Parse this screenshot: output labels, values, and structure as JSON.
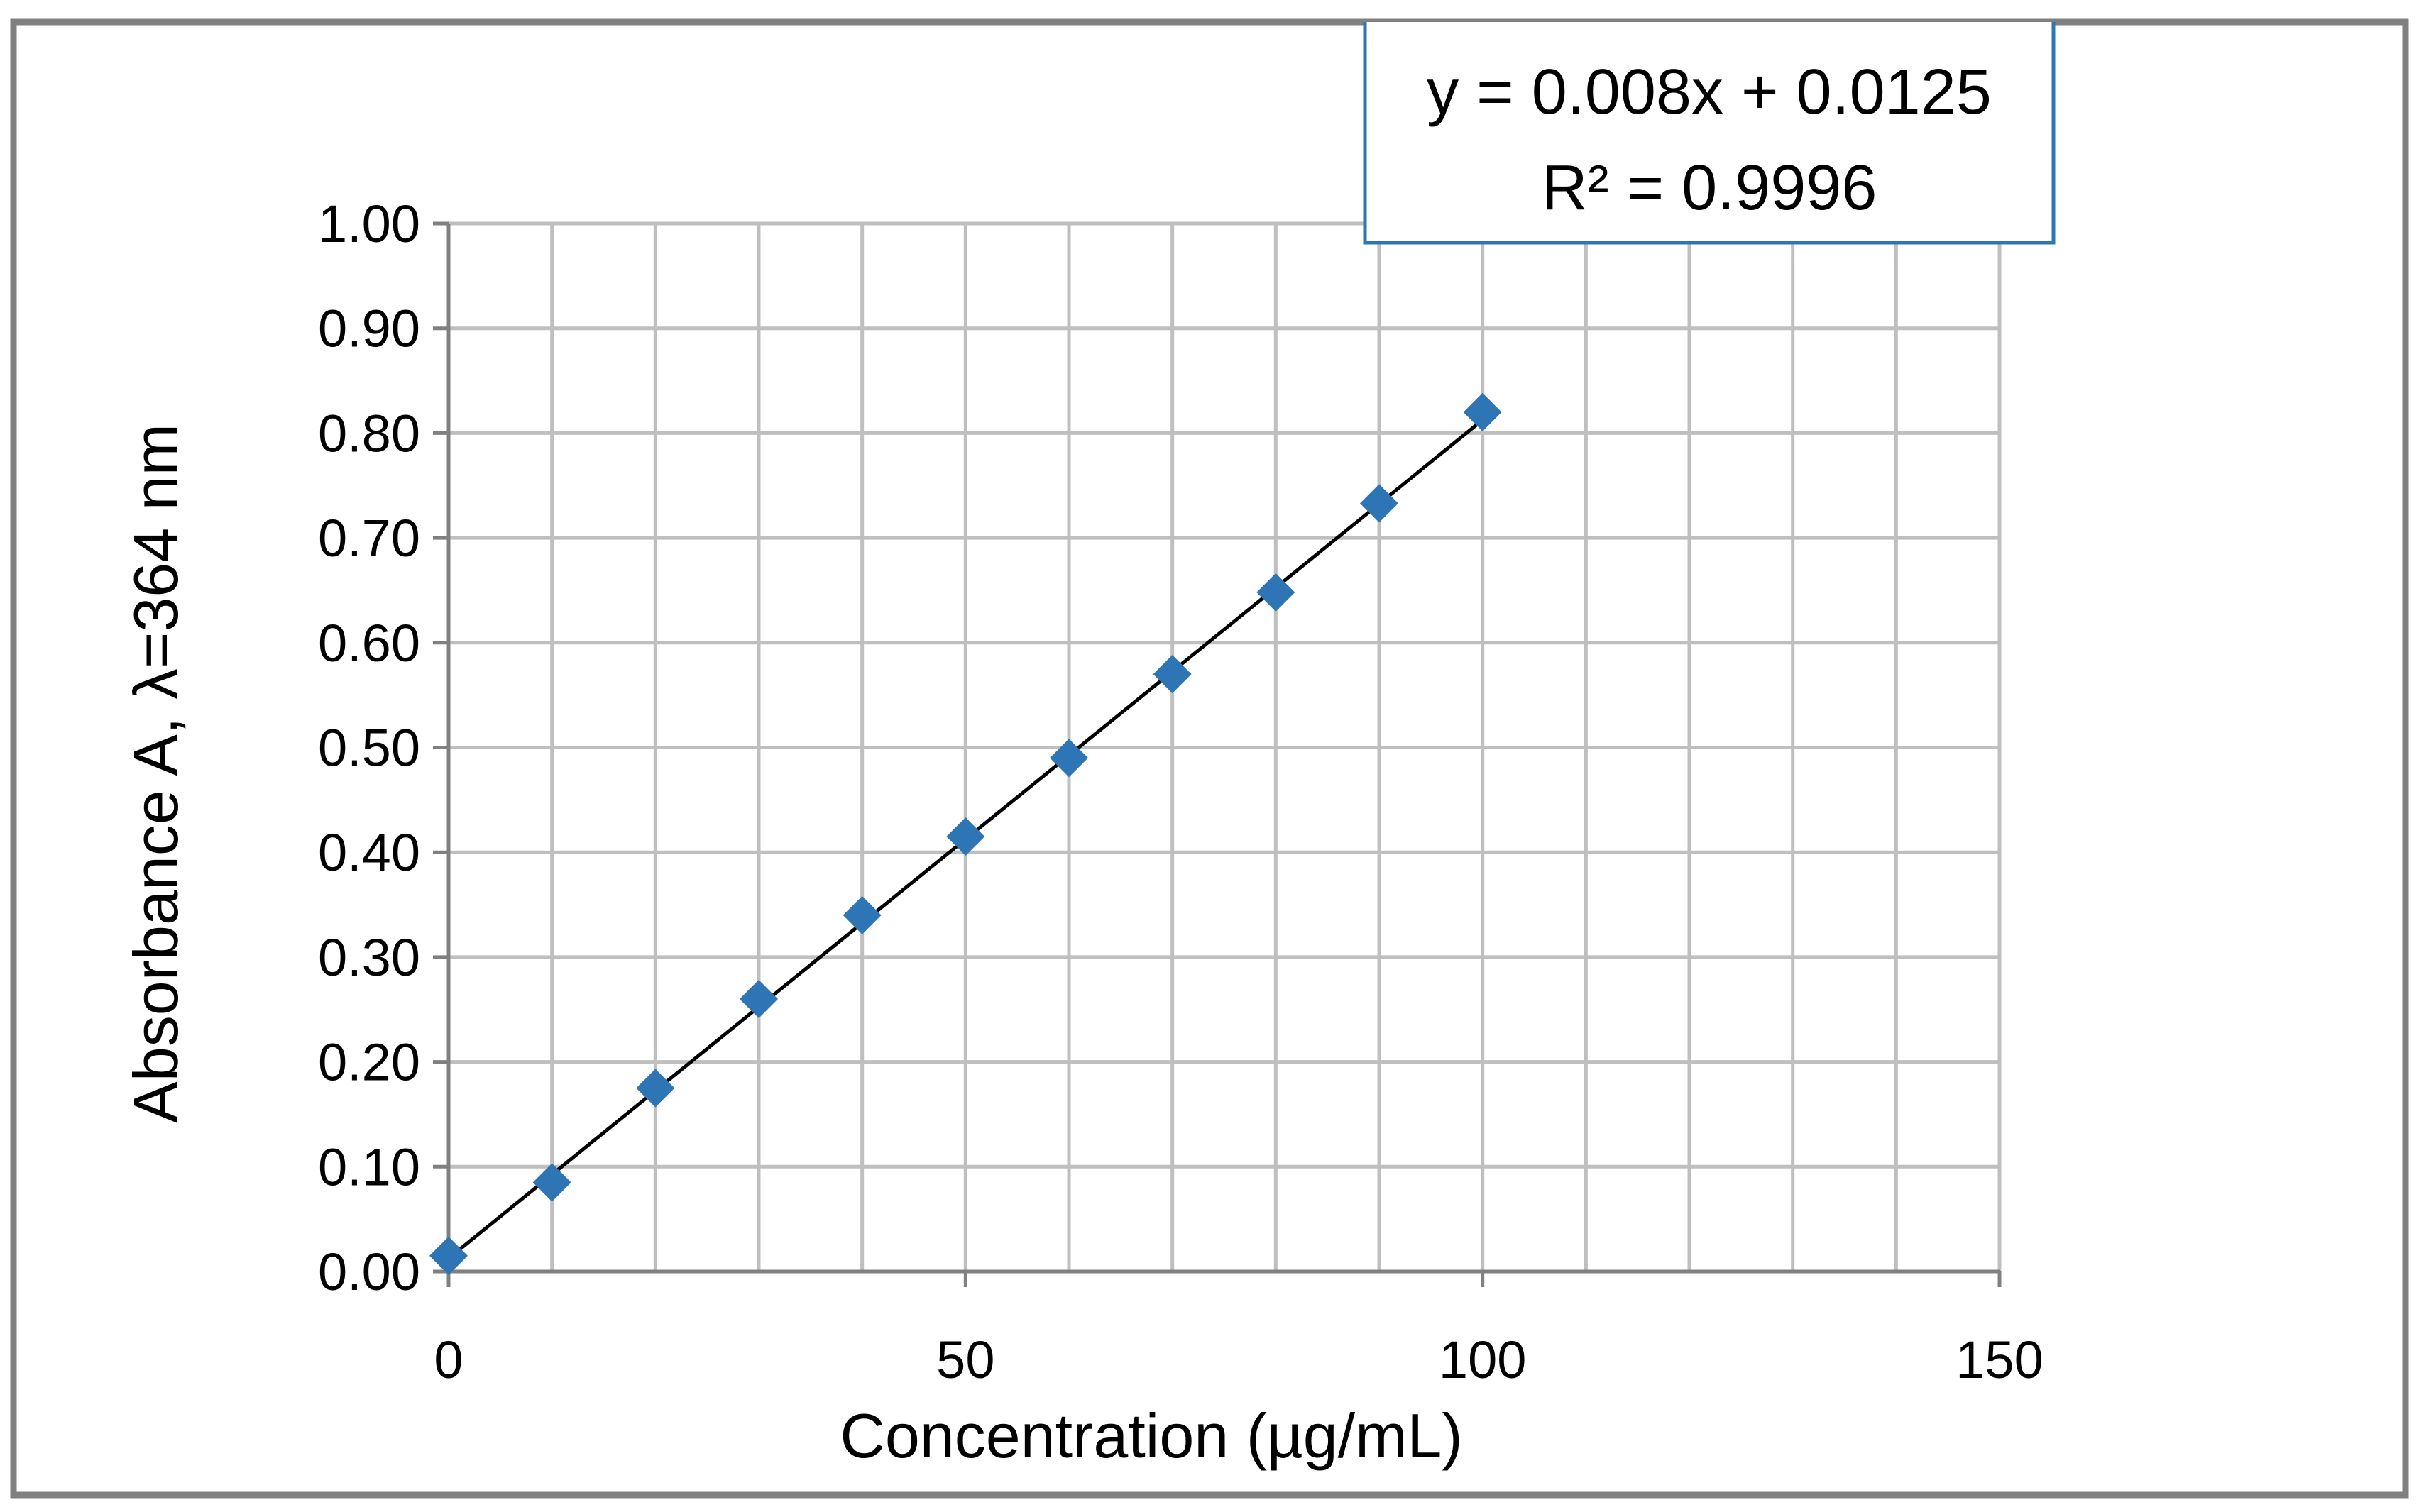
{
  "chart_data": {
    "type": "scatter",
    "title": "",
    "xlabel": "Concentration  (µg/mL)",
    "ylabel": "Absorbance  A,  λ=364  nm",
    "xlim": [
      0,
      150
    ],
    "ylim": [
      0,
      1.0
    ],
    "x_ticks": [
      "0",
      "50",
      "100",
      "150"
    ],
    "x_tick_values": [
      0,
      50,
      100,
      150
    ],
    "x_minor_grid_step": 10,
    "y_ticks": [
      "0.00",
      "0.10",
      "0.20",
      "0.30",
      "0.40",
      "0.50",
      "0.60",
      "0.70",
      "0.80",
      "0.90",
      "1.00"
    ],
    "y_tick_values": [
      0,
      0.1,
      0.2,
      0.3,
      0.4,
      0.5,
      0.6,
      0.7,
      0.8,
      0.9,
      1.0
    ],
    "grid": true,
    "series": [
      {
        "name": "Absorbance",
        "marker": "diamond",
        "color": "#2E75B6",
        "x": [
          0,
          10,
          20,
          30,
          40,
          50,
          60,
          70,
          80,
          90,
          100
        ],
        "y": [
          0.015,
          0.085,
          0.175,
          0.26,
          0.34,
          0.415,
          0.49,
          0.57,
          0.648,
          0.733,
          0.82
        ]
      }
    ],
    "trendline": {
      "type": "linear",
      "slope": 0.008,
      "intercept": 0.0125,
      "x_range": [
        0,
        100
      ],
      "color": "#000000",
      "equation_text": "y = 0.008x + 0.0125",
      "r2_text": "R² = 0.9996",
      "box_color": "#2E75B6",
      "legend_placement": "top-right"
    }
  },
  "colors": {
    "frame": "#808080",
    "grid": "#BFBFBF",
    "marker": "#2E75B6",
    "trendline": "#000000",
    "equation_box": "#2E75B6"
  }
}
